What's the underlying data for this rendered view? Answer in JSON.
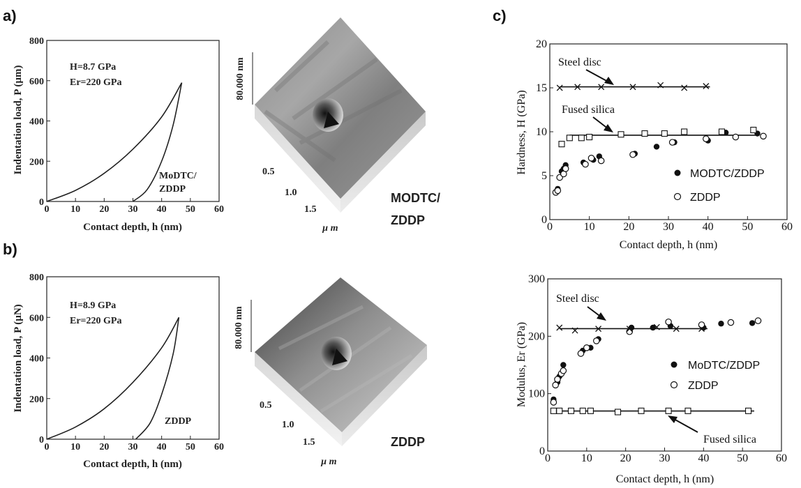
{
  "panels": {
    "a": "a)",
    "b": "b)",
    "c": "c)"
  },
  "load_plots": [
    {
      "ylabel_a": "Indentation load, P (µm)",
      "xlabel": "Contact depth, h (nm)",
      "xticks": [
        "0",
        "10",
        "20",
        "30",
        "40",
        "50",
        "60"
      ],
      "yticks": [
        "0",
        "200",
        "400",
        "600",
        "800"
      ],
      "annot1": "H=8.7 GPa",
      "annot2": "Er=220 GPa",
      "material1": "MoDTC/",
      "material2": "ZDDP"
    },
    {
      "ylabel_a": "Indentation load, P (µN)",
      "xlabel": "Contact depth, h (nm)",
      "xticks": [
        "0",
        "10",
        "20",
        "30",
        "40",
        "50",
        "60"
      ],
      "yticks": [
        "0",
        "200",
        "400",
        "600",
        "800"
      ],
      "annot1": "H=8.9 GPa",
      "annot2": "Er=220 GPa",
      "material1": "ZDDP",
      "material2": ""
    }
  ],
  "afm": [
    {
      "zlabel": "80.000 nm",
      "ticks": [
        "0.5",
        "1.0",
        "1.5"
      ],
      "unit": "µ m",
      "title1": "MODTC/",
      "title2": "ZDDP"
    },
    {
      "zlabel": "80.000 nm",
      "ticks": [
        "0.5",
        "1.0",
        "1.5"
      ],
      "unit": "µ m",
      "title1": "ZDDP",
      "title2": ""
    }
  ],
  "colors": {
    "ink": "#222222",
    "afm_light": "#b5b5b5",
    "afm_dark": "#6e6e6e"
  },
  "chart_data": [
    {
      "type": "line",
      "xlabel": "Contact depth, h (nm)",
      "ylabel": "Indentation load, P (µm)",
      "xlim": [
        0,
        60
      ],
      "ylim": [
        0,
        800
      ],
      "annotations": [
        "H=8.7 GPa",
        "Er=220 GPa",
        "MoDTC/ ZDDP"
      ],
      "series": [
        {
          "name": "loading",
          "x": [
            0,
            10,
            20,
            30,
            40,
            47
          ],
          "y": [
            0,
            55,
            140,
            260,
            420,
            590
          ]
        },
        {
          "name": "unloading",
          "x": [
            30,
            35,
            40,
            44,
            47
          ],
          "y": [
            0,
            60,
            200,
            380,
            590
          ]
        }
      ]
    },
    {
      "type": "line",
      "xlabel": "Contact depth, h (nm)",
      "ylabel": "Indentation load, P (µN)",
      "xlim": [
        0,
        60
      ],
      "ylim": [
        0,
        800
      ],
      "annotations": [
        "H=8.9 GPa",
        "Er=220 GPa",
        "ZDDP"
      ],
      "series": [
        {
          "name": "loading",
          "x": [
            0,
            10,
            20,
            30,
            40,
            46
          ],
          "y": [
            0,
            60,
            150,
            280,
            450,
            600
          ]
        },
        {
          "name": "unloading",
          "x": [
            31,
            36,
            40,
            44,
            46
          ],
          "y": [
            0,
            80,
            220,
            420,
            600
          ]
        }
      ]
    },
    {
      "type": "scatter",
      "xlabel": "Contact depth, h (nm)",
      "ylabel": "Hardness, H (GPa)",
      "xlim": [
        0,
        60
      ],
      "ylim": [
        0,
        20
      ],
      "xticks": [
        "0",
        "10",
        "20",
        "30",
        "40",
        "50",
        "60"
      ],
      "yticks": [
        "0",
        "5",
        "10",
        "15",
        "20"
      ],
      "legend": [
        "MODTC/ZDDP",
        "ZDDP"
      ],
      "annotations": [
        "Steel disc",
        "Fused silica"
      ],
      "series": [
        {
          "name": "MODTC/ZDDP",
          "marker": "filled-circle",
          "x": [
            2,
            3,
            3.5,
            4,
            8.5,
            11,
            12.5,
            21.5,
            27,
            31.5,
            40,
            44.5,
            52.5
          ],
          "y": [
            3.5,
            5.5,
            5.8,
            6.2,
            6.5,
            6.8,
            7.2,
            7.5,
            8.3,
            8.8,
            9,
            9.9,
            9.8
          ]
        },
        {
          "name": "ZDDP",
          "marker": "open-circle",
          "x": [
            1.5,
            2,
            2.5,
            3.5,
            4,
            9,
            10.5,
            13,
            21,
            31,
            39.5,
            47,
            54
          ],
          "y": [
            3.1,
            3.3,
            4.8,
            5.2,
            5.8,
            6.3,
            7,
            6.7,
            7.4,
            8.8,
            9.2,
            9.4,
            9.5
          ]
        },
        {
          "name": "Steel disc",
          "marker": "cross",
          "x": [
            2.5,
            7,
            13,
            21,
            28,
            34,
            39.5
          ],
          "y": [
            15,
            15.1,
            15.1,
            15.1,
            15.3,
            15,
            15.2
          ]
        },
        {
          "name": "Fused silica",
          "marker": "open-square",
          "x": [
            3,
            5,
            8,
            10,
            18,
            24,
            29,
            34,
            43.5,
            51.5
          ],
          "y": [
            8.6,
            9.3,
            9.3,
            9.4,
            9.7,
            9.8,
            9.8,
            10,
            10,
            10.2
          ]
        }
      ]
    },
    {
      "type": "scatter",
      "xlabel": "Contact depth, h (nm)",
      "ylabel": "Modulus, Er (GPa)",
      "xlim": [
        0,
        60
      ],
      "ylim": [
        0,
        300
      ],
      "xticks": [
        "0",
        "10",
        "20",
        "30",
        "40",
        "50",
        "60"
      ],
      "yticks": [
        "0",
        "100",
        "200",
        "300"
      ],
      "legend": [
        "MoDTC/ZDDP",
        "ZDDP"
      ],
      "annotations": [
        "Steel disc",
        "Fused silica"
      ],
      "series": [
        {
          "name": "MoDTC/ZDDP",
          "marker": "filled-circle",
          "x": [
            1.5,
            2.5,
            3,
            3.5,
            4,
            9,
            11,
            13,
            21.5,
            27,
            31.5,
            40,
            44.5,
            52.5
          ],
          "y": [
            90,
            120,
            130,
            135,
            150,
            175,
            180,
            195,
            215,
            215,
            218,
            215,
            222,
            223
          ]
        },
        {
          "name": "ZDDP",
          "marker": "open-circle",
          "x": [
            1.5,
            2,
            2.5,
            3.5,
            4,
            8.5,
            10,
            12.5,
            21,
            31,
            39.5,
            47,
            54
          ],
          "y": [
            85,
            115,
            125,
            135,
            140,
            170,
            180,
            192,
            208,
            225,
            220,
            224,
            227
          ]
        },
        {
          "name": "Steel disc",
          "marker": "cross",
          "x": [
            3,
            7,
            13,
            21,
            28,
            33,
            39.5
          ],
          "y": [
            215,
            210,
            213,
            213,
            216,
            213,
            213
          ]
        },
        {
          "name": "Fused silica",
          "marker": "open-square",
          "x": [
            1.5,
            3,
            6,
            9,
            11,
            18,
            24,
            31,
            36,
            51.5
          ],
          "y": [
            70,
            70,
            70,
            70,
            70,
            68,
            70,
            70,
            70,
            70
          ]
        }
      ]
    }
  ]
}
